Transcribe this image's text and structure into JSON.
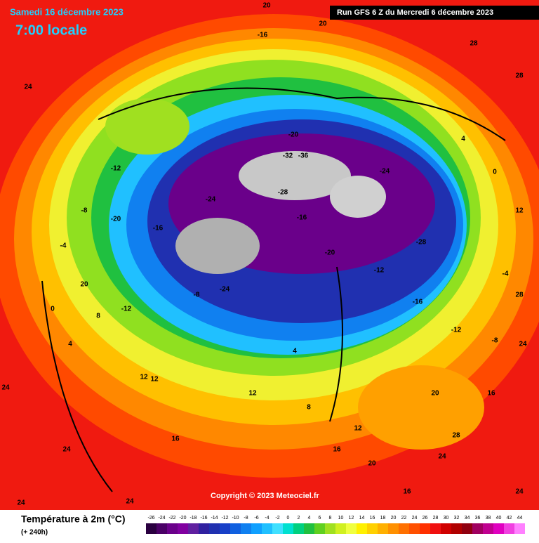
{
  "header": {
    "date": "Samedi 16 décembre 2023",
    "time": "7:00 locale",
    "run": "Run GFS 6 Z du Mercredi 6 décembre 2023"
  },
  "copyright": "Copyright © 2023 Meteociel.fr",
  "legend": {
    "title": "Température à 2m (°C)",
    "subtitle": "(+ 240h)",
    "ticks": [
      -26,
      -24,
      -22,
      -20,
      -18,
      -16,
      -14,
      -12,
      -10,
      -8,
      -6,
      -4,
      -2,
      0,
      2,
      4,
      6,
      8,
      10,
      12,
      14,
      16,
      18,
      20,
      22,
      24,
      26,
      28,
      30,
      32,
      34,
      36,
      38,
      40,
      42,
      44
    ],
    "colors": [
      "#2a0040",
      "#4a0066",
      "#6a008a",
      "#8000a0",
      "#6020a0",
      "#3020a0",
      "#2030b0",
      "#1840c8",
      "#1060e0",
      "#1080f0",
      "#10a0ff",
      "#20c0ff",
      "#40e0ff",
      "#00e0d0",
      "#00d080",
      "#20c040",
      "#60d020",
      "#a0e020",
      "#d0f020",
      "#f0ff40",
      "#fff000",
      "#ffd000",
      "#ffb000",
      "#ff9000",
      "#ff7000",
      "#ff5000",
      "#ff3000",
      "#f01010",
      "#d00000",
      "#b00000",
      "#900010",
      "#a00060",
      "#c00090",
      "#e000c0",
      "#f040e0",
      "#ff80ff"
    ]
  },
  "map_labels": [
    20,
    20,
    28,
    24,
    28,
    24,
    28,
    24,
    24,
    24,
    20,
    24,
    16,
    12,
    -16,
    -20,
    -32,
    -36,
    -28,
    -24,
    -28,
    -24,
    -20,
    -12,
    -16,
    -12,
    -8,
    -4,
    0,
    4,
    -20,
    -16,
    -24,
    -12,
    -8,
    -4,
    0,
    4,
    8,
    12,
    12,
    16,
    20,
    24,
    20,
    16,
    12,
    24,
    28,
    -12,
    -8,
    -16,
    4,
    8,
    12,
    16
  ]
}
